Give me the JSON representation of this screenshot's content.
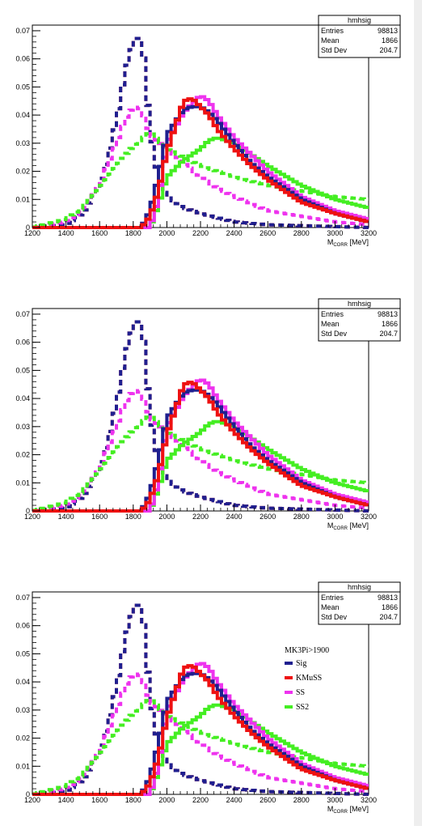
{
  "stats_box": {
    "title": "hmhsig",
    "rows": [
      {
        "label": "Entries",
        "value": "98813"
      },
      {
        "label": "Mean",
        "value": "1866"
      },
      {
        "label": "Std Dev",
        "value": "204.7"
      }
    ]
  },
  "legend": {
    "title": "MK3Pi>1900",
    "entries": [
      "Sig",
      "KMuSS",
      "SS",
      "SS2"
    ]
  },
  "colors": {
    "Sig": "#1f1f8f",
    "KMuSS": "#ee1111",
    "SS": "#ee33ee",
    "SS2": "#44ee22"
  },
  "chart_data": [
    {
      "type": "line",
      "xlabel": "M",
      "xlabel_sub": "CORR",
      "xlabel_unit": "[MeV]",
      "xlim": [
        1200,
        3200
      ],
      "ylim": [
        0,
        0.072
      ],
      "xticks": [
        "1200",
        "1400",
        "1600",
        "1800",
        "2000",
        "2200",
        "2400",
        "2600",
        "2800",
        "3000",
        "3200"
      ],
      "yticks": [
        "0",
        "0.01",
        "0.02",
        "0.03",
        "0.04",
        "0.05",
        "0.06",
        "0.07"
      ],
      "grid": false,
      "legend": "none",
      "series": [
        {
          "style": "dashed",
          "key": "KMuSS",
          "x": [
            1200,
            1400,
            1500,
            1600,
            1650,
            1700,
            1750,
            1800,
            1830,
            1860,
            1900,
            1950,
            2000,
            2100,
            2200,
            2400,
            2600,
            3200
          ],
          "values": [
            0,
            0.001,
            0.005,
            0.015,
            0.025,
            0.038,
            0.055,
            0.066,
            0.069,
            0.062,
            0.035,
            0.017,
            0.011,
            0.007,
            0.005,
            0.002,
            0.001,
            0
          ]
        },
        {
          "style": "dashed",
          "key": "Sig",
          "x": [
            1200,
            1400,
            1500,
            1600,
            1650,
            1700,
            1750,
            1800,
            1830,
            1860,
            1900,
            1950,
            2000,
            2100,
            2200,
            2400,
            2600,
            3200
          ],
          "values": [
            0,
            0.001,
            0.005,
            0.015,
            0.025,
            0.038,
            0.055,
            0.066,
            0.069,
            0.062,
            0.035,
            0.017,
            0.011,
            0.007,
            0.005,
            0.002,
            0.001,
            0
          ]
        },
        {
          "style": "dashed",
          "key": "SS",
          "x": [
            1200,
            1400,
            1500,
            1600,
            1700,
            1750,
            1800,
            1850,
            1900,
            2000,
            2100,
            2200,
            2300,
            2400,
            2600,
            2800,
            3000,
            3200
          ],
          "values": [
            0,
            0.002,
            0.006,
            0.015,
            0.03,
            0.038,
            0.043,
            0.042,
            0.033,
            0.028,
            0.023,
            0.018,
            0.014,
            0.011,
            0.006,
            0.004,
            0.002,
            0.001
          ]
        },
        {
          "style": "dashed",
          "key": "SS2",
          "x": [
            1200,
            1400,
            1500,
            1600,
            1700,
            1800,
            1900,
            2000,
            2100,
            2200,
            2300,
            2400,
            2600,
            2800,
            3000,
            3200
          ],
          "values": [
            0,
            0.003,
            0.007,
            0.014,
            0.022,
            0.029,
            0.034,
            0.028,
            0.025,
            0.022,
            0.02,
            0.018,
            0.015,
            0.013,
            0.011,
            0.01
          ]
        },
        {
          "style": "solid",
          "key": "SS2",
          "x": [
            1900,
            1950,
            2000,
            2100,
            2200,
            2250,
            2300,
            2400,
            2500,
            2600,
            2800,
            3000,
            3200
          ],
          "values": [
            0,
            0.008,
            0.018,
            0.024,
            0.028,
            0.031,
            0.032,
            0.03,
            0.026,
            0.022,
            0.015,
            0.01,
            0.007
          ]
        },
        {
          "style": "solid",
          "key": "SS",
          "x": [
            1900,
            1950,
            2000,
            2100,
            2150,
            2200,
            2250,
            2300,
            2400,
            2500,
            2600,
            2800,
            3000,
            3200
          ],
          "values": [
            0,
            0.01,
            0.03,
            0.041,
            0.044,
            0.047,
            0.045,
            0.04,
            0.032,
            0.026,
            0.02,
            0.011,
            0.006,
            0.003
          ]
        },
        {
          "style": "solid",
          "key": "Sig",
          "x": [
            1850,
            1900,
            1950,
            2000,
            2100,
            2150,
            2200,
            2250,
            2300,
            2400,
            2500,
            2600,
            2800,
            3000,
            3200
          ],
          "values": [
            0,
            0.006,
            0.018,
            0.033,
            0.042,
            0.043,
            0.043,
            0.041,
            0.038,
            0.03,
            0.023,
            0.018,
            0.01,
            0.005,
            0.002
          ]
        },
        {
          "style": "solid",
          "key": "KMuSS",
          "x": [
            1850,
            1900,
            1950,
            2000,
            2050,
            2100,
            2150,
            2200,
            2250,
            2300,
            2400,
            2500,
            2600,
            2800,
            3000,
            3200
          ],
          "values": [
            0,
            0.004,
            0.013,
            0.027,
            0.036,
            0.045,
            0.046,
            0.043,
            0.04,
            0.035,
            0.028,
            0.022,
            0.017,
            0.009,
            0.005,
            0.002
          ]
        }
      ]
    },
    {
      "type": "line",
      "xlabel": "M",
      "xlabel_sub": "CORR",
      "xlabel_unit": "[MeV]",
      "xlim": [
        1200,
        3200
      ],
      "ylim": [
        0,
        0.072
      ],
      "xticks": [
        "1200",
        "1400",
        "1600",
        "1800",
        "2000",
        "2200",
        "2400",
        "2600",
        "2800",
        "3000",
        "3200"
      ],
      "yticks": [
        "0",
        "0.01",
        "0.02",
        "0.03",
        "0.04",
        "0.05",
        "0.06",
        "0.07"
      ],
      "grid": false,
      "legend": "none",
      "series": [
        {
          "style": "dashed",
          "key": "KMuSS",
          "x": [
            1200,
            1400,
            1500,
            1600,
            1650,
            1700,
            1750,
            1800,
            1830,
            1860,
            1900,
            1950,
            2000,
            2100,
            2200,
            2400,
            2600,
            3200
          ],
          "values": [
            0,
            0.001,
            0.005,
            0.015,
            0.025,
            0.038,
            0.055,
            0.066,
            0.069,
            0.062,
            0.035,
            0.017,
            0.011,
            0.007,
            0.005,
            0.002,
            0.001,
            0
          ]
        },
        {
          "style": "dashed",
          "key": "Sig",
          "x": [
            1200,
            1400,
            1500,
            1600,
            1650,
            1700,
            1750,
            1800,
            1830,
            1860,
            1900,
            1950,
            2000,
            2100,
            2200,
            2400,
            2600,
            3200
          ],
          "values": [
            0,
            0.001,
            0.005,
            0.015,
            0.025,
            0.038,
            0.055,
            0.066,
            0.069,
            0.062,
            0.035,
            0.017,
            0.011,
            0.007,
            0.005,
            0.002,
            0.001,
            0
          ]
        },
        {
          "style": "dashed",
          "key": "SS",
          "x": [
            1200,
            1400,
            1500,
            1600,
            1700,
            1750,
            1800,
            1850,
            1900,
            2000,
            2100,
            2200,
            2300,
            2400,
            2600,
            2800,
            3000,
            3200
          ],
          "values": [
            0,
            0.002,
            0.006,
            0.015,
            0.03,
            0.038,
            0.043,
            0.042,
            0.033,
            0.028,
            0.023,
            0.018,
            0.014,
            0.011,
            0.006,
            0.004,
            0.002,
            0.001
          ]
        },
        {
          "style": "dashed",
          "key": "SS2",
          "x": [
            1200,
            1400,
            1500,
            1600,
            1700,
            1800,
            1900,
            2000,
            2100,
            2200,
            2300,
            2400,
            2600,
            2800,
            3000,
            3200
          ],
          "values": [
            0,
            0.003,
            0.007,
            0.014,
            0.022,
            0.029,
            0.034,
            0.028,
            0.025,
            0.022,
            0.02,
            0.018,
            0.015,
            0.013,
            0.011,
            0.01
          ]
        },
        {
          "style": "solid",
          "key": "SS2",
          "x": [
            1900,
            1950,
            2000,
            2100,
            2200,
            2250,
            2300,
            2400,
            2500,
            2600,
            2800,
            3000,
            3200
          ],
          "values": [
            0,
            0.008,
            0.018,
            0.024,
            0.028,
            0.031,
            0.032,
            0.03,
            0.026,
            0.022,
            0.015,
            0.01,
            0.007
          ]
        },
        {
          "style": "solid",
          "key": "SS",
          "x": [
            1900,
            1950,
            2000,
            2100,
            2150,
            2200,
            2250,
            2300,
            2400,
            2500,
            2600,
            2800,
            3000,
            3200
          ],
          "values": [
            0,
            0.01,
            0.03,
            0.041,
            0.044,
            0.047,
            0.045,
            0.04,
            0.032,
            0.026,
            0.02,
            0.011,
            0.006,
            0.003
          ]
        },
        {
          "style": "solid",
          "key": "Sig",
          "x": [
            1850,
            1900,
            1950,
            2000,
            2100,
            2150,
            2200,
            2250,
            2300,
            2400,
            2500,
            2600,
            2800,
            3000,
            3200
          ],
          "values": [
            0,
            0.006,
            0.018,
            0.033,
            0.042,
            0.043,
            0.043,
            0.041,
            0.038,
            0.03,
            0.023,
            0.018,
            0.01,
            0.005,
            0.002
          ]
        },
        {
          "style": "solid",
          "key": "KMuSS",
          "x": [
            1850,
            1900,
            1950,
            2000,
            2050,
            2100,
            2150,
            2200,
            2250,
            2300,
            2400,
            2500,
            2600,
            2800,
            3000,
            3200
          ],
          "values": [
            0,
            0.004,
            0.013,
            0.027,
            0.036,
            0.045,
            0.046,
            0.043,
            0.04,
            0.035,
            0.028,
            0.022,
            0.017,
            0.009,
            0.005,
            0.002
          ]
        }
      ]
    },
    {
      "type": "line",
      "xlabel": "M",
      "xlabel_sub": "CORR",
      "xlabel_unit": "[MeV]",
      "xlim": [
        1200,
        3200
      ],
      "ylim": [
        0,
        0.072
      ],
      "xticks": [
        "1200",
        "1400",
        "1600",
        "1800",
        "2000",
        "2200",
        "2400",
        "2600",
        "2800",
        "3000",
        "3200"
      ],
      "yticks": [
        "0",
        "0.01",
        "0.02",
        "0.03",
        "0.04",
        "0.05",
        "0.06",
        "0.07"
      ],
      "grid": false,
      "legend": "right",
      "series": [
        {
          "style": "dashed",
          "key": "KMuSS",
          "x": [
            1200,
            1400,
            1500,
            1600,
            1650,
            1700,
            1750,
            1800,
            1830,
            1860,
            1900,
            1950,
            2000,
            2100,
            2200,
            2400,
            2600,
            3200
          ],
          "values": [
            0,
            0.001,
            0.005,
            0.015,
            0.025,
            0.038,
            0.055,
            0.066,
            0.069,
            0.062,
            0.035,
            0.017,
            0.011,
            0.007,
            0.005,
            0.002,
            0.001,
            0
          ]
        },
        {
          "style": "dashed",
          "key": "Sig",
          "x": [
            1200,
            1400,
            1500,
            1600,
            1650,
            1700,
            1750,
            1800,
            1830,
            1860,
            1900,
            1950,
            2000,
            2100,
            2200,
            2400,
            2600,
            3200
          ],
          "values": [
            0,
            0.001,
            0.005,
            0.015,
            0.025,
            0.038,
            0.055,
            0.066,
            0.069,
            0.062,
            0.035,
            0.017,
            0.011,
            0.007,
            0.005,
            0.002,
            0.001,
            0
          ]
        },
        {
          "style": "dashed",
          "key": "SS",
          "x": [
            1200,
            1400,
            1500,
            1600,
            1700,
            1750,
            1800,
            1850,
            1900,
            2000,
            2100,
            2200,
            2300,
            2400,
            2600,
            2800,
            3000,
            3200
          ],
          "values": [
            0,
            0.002,
            0.006,
            0.015,
            0.03,
            0.038,
            0.043,
            0.042,
            0.033,
            0.028,
            0.023,
            0.018,
            0.014,
            0.011,
            0.006,
            0.004,
            0.002,
            0.001
          ]
        },
        {
          "style": "dashed",
          "key": "SS2",
          "x": [
            1200,
            1400,
            1500,
            1600,
            1700,
            1800,
            1900,
            2000,
            2100,
            2200,
            2300,
            2400,
            2600,
            2800,
            3000,
            3200
          ],
          "values": [
            0,
            0.003,
            0.007,
            0.014,
            0.022,
            0.029,
            0.034,
            0.028,
            0.025,
            0.022,
            0.02,
            0.018,
            0.015,
            0.013,
            0.011,
            0.01
          ]
        },
        {
          "style": "solid",
          "key": "SS2",
          "x": [
            1900,
            1950,
            2000,
            2100,
            2200,
            2250,
            2300,
            2400,
            2500,
            2600,
            2800,
            3000,
            3200
          ],
          "values": [
            0,
            0.008,
            0.018,
            0.024,
            0.028,
            0.031,
            0.032,
            0.03,
            0.026,
            0.022,
            0.015,
            0.01,
            0.007
          ]
        },
        {
          "style": "solid",
          "key": "SS",
          "x": [
            1900,
            1950,
            2000,
            2100,
            2150,
            2200,
            2250,
            2300,
            2400,
            2500,
            2600,
            2800,
            3000,
            3200
          ],
          "values": [
            0,
            0.01,
            0.03,
            0.041,
            0.044,
            0.047,
            0.045,
            0.04,
            0.032,
            0.026,
            0.02,
            0.011,
            0.006,
            0.003
          ]
        },
        {
          "style": "solid",
          "key": "Sig",
          "x": [
            1850,
            1900,
            1950,
            2000,
            2100,
            2150,
            2200,
            2250,
            2300,
            2400,
            2500,
            2600,
            2800,
            3000,
            3200
          ],
          "values": [
            0,
            0.006,
            0.018,
            0.033,
            0.042,
            0.043,
            0.043,
            0.041,
            0.038,
            0.03,
            0.023,
            0.018,
            0.01,
            0.005,
            0.002
          ]
        },
        {
          "style": "solid",
          "key": "KMuSS",
          "x": [
            1850,
            1900,
            1950,
            2000,
            2050,
            2100,
            2150,
            2200,
            2250,
            2300,
            2400,
            2500,
            2600,
            2800,
            3000,
            3200
          ],
          "values": [
            0,
            0.004,
            0.013,
            0.027,
            0.036,
            0.045,
            0.046,
            0.043,
            0.04,
            0.035,
            0.028,
            0.022,
            0.017,
            0.009,
            0.005,
            0.002
          ]
        }
      ]
    }
  ]
}
